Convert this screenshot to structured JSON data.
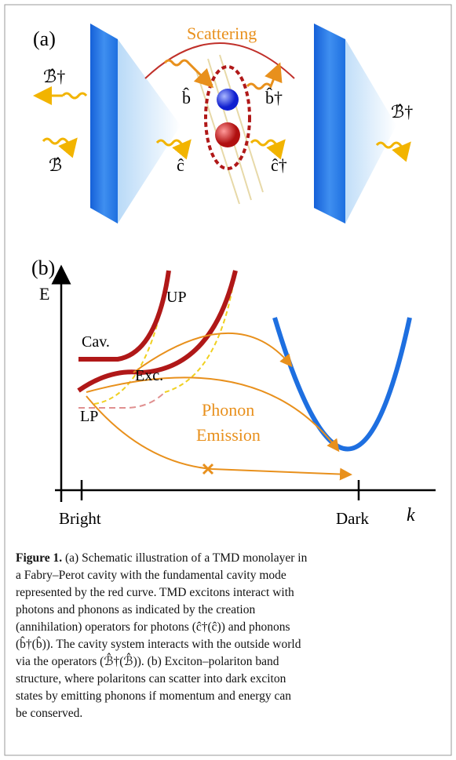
{
  "figure": {
    "panel_a": {
      "label": "(a)",
      "scattering": "Scattering",
      "out_left": "ℬ̂†",
      "in_left": "ℬ̂",
      "b": "b̂",
      "b_dag": "b̂†",
      "c": "ĉ",
      "c_dag": "ĉ†",
      "out_right": "ℬ̂†"
    },
    "panel_b": {
      "label": "(b)",
      "y_axis": "E",
      "up": "UP",
      "cav": "Cav.",
      "exc": "Exc.",
      "phonon": "Phonon",
      "emission": "Emission",
      "lp": "LP",
      "bright": "Bright",
      "dark": "Dark",
      "x_axis": "k"
    },
    "caption": {
      "label": "Figure 1.",
      "lines": [
        "(a) Schematic illustration of a TMD monolayer in",
        "a Fabry–Perot cavity with the fundamental cavity mode",
        "represented by the red curve. TMD excitons interact with",
        "photons and phonons as indicated by the creation",
        "(annihilation) operators for photons (ĉ†(ĉ)) and phonons",
        "(b̂†(b̂)). The cavity system interacts with the outside world",
        "via the operators (ℬ̂†(ℬ̂)). (b) Exciton–polariton band",
        "structure, where polaritons can scatter into dark exciton",
        "states by emitting phonons if momentum and energy can",
        "be conserved."
      ]
    }
  }
}
